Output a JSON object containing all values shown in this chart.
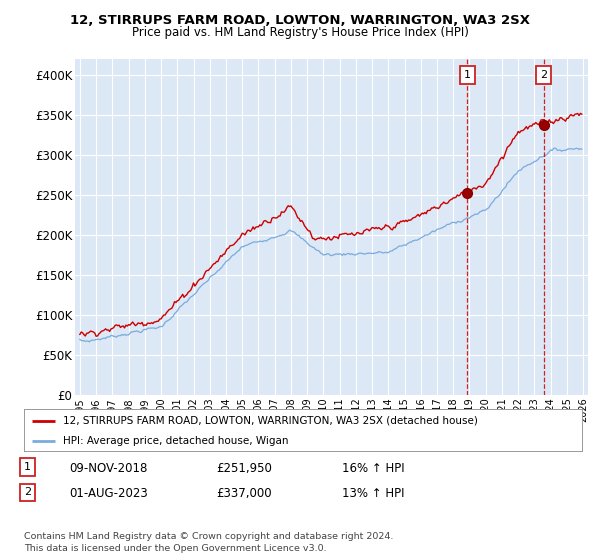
{
  "title": "12, STIRRUPS FARM ROAD, LOWTON, WARRINGTON, WA3 2SX",
  "subtitle": "Price paid vs. HM Land Registry's House Price Index (HPI)",
  "ylim": [
    0,
    420000
  ],
  "yticks": [
    0,
    50000,
    100000,
    150000,
    200000,
    250000,
    300000,
    350000,
    400000
  ],
  "ytick_labels": [
    "£0",
    "£50K",
    "£100K",
    "£150K",
    "£200K",
    "£250K",
    "£300K",
    "£350K",
    "£400K"
  ],
  "bg_color": "#ffffff",
  "plot_bg_color": "#dce8f5",
  "grid_color": "#ffffff",
  "hpi_color": "#7aabdc",
  "price_color": "#cc0000",
  "sale1_price": 251950,
  "sale2_price": 337000,
  "sale1_date": "09-NOV-2018",
  "sale2_date": "01-AUG-2023",
  "sale1_hpi_pct": "16%",
  "sale2_hpi_pct": "13%",
  "legend_line1": "12, STIRRUPS FARM ROAD, LOWTON, WARRINGTON, WA3 2SX (detached house)",
  "legend_line2": "HPI: Average price, detached house, Wigan",
  "footer1": "Contains HM Land Registry data © Crown copyright and database right 2024.",
  "footer2": "This data is licensed under the Open Government Licence v3.0.",
  "sale1_year": 2018.875,
  "sale2_year": 2023.583
}
